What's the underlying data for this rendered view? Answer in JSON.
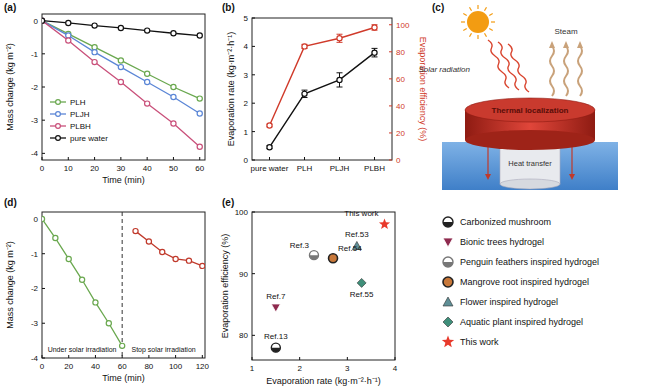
{
  "chart_data": [
    {
      "title": "(a)",
      "type": "line",
      "x_label": "Time (min)",
      "y_label": "Mass change (kg m⁻²)",
      "x": [
        0,
        10,
        20,
        30,
        40,
        50,
        60
      ],
      "xlim": [
        0,
        62
      ],
      "xticks": [
        0,
        10,
        20,
        30,
        40,
        50,
        60
      ],
      "ylim": [
        -4.2,
        0.2
      ],
      "yticks": [
        -4,
        -3,
        -2,
        -1,
        0
      ],
      "legend": "lower left",
      "series": [
        {
          "name": "PLH",
          "color": "#6aa84f",
          "marker": "open-circle",
          "values": [
            0,
            -0.4,
            -0.8,
            -1.2,
            -1.6,
            -2.0,
            -2.35
          ]
        },
        {
          "name": "PLJH",
          "color": "#5b86d6",
          "marker": "open-circle",
          "values": [
            0,
            -0.45,
            -0.95,
            -1.4,
            -1.85,
            -2.3,
            -2.8
          ]
        },
        {
          "name": "PLBH",
          "color": "#c9507a",
          "marker": "open-circle",
          "values": [
            0,
            -0.6,
            -1.25,
            -1.85,
            -2.5,
            -3.1,
            -3.8
          ]
        },
        {
          "name": "pure water",
          "color": "#111111",
          "marker": "open-circle",
          "values": [
            0,
            -0.07,
            -0.15,
            -0.22,
            -0.3,
            -0.38,
            -0.45
          ]
        }
      ]
    },
    {
      "title": "(b)",
      "type": "line",
      "categories": [
        "pure water",
        "PLH",
        "PLJH",
        "PLBH"
      ],
      "y_label": "Evaporation rate (kg·m⁻²·h⁻¹)",
      "y2_label": "Evaporation efficiency (%)",
      "ylim": [
        0,
        5
      ],
      "yticks": [
        0,
        1,
        2,
        3,
        4,
        5
      ],
      "y2lim": [
        0,
        105
      ],
      "y2ticks": [
        0,
        20,
        40,
        60,
        80,
        100
      ],
      "series": [
        {
          "color": "#111111",
          "marker": "circle",
          "values": [
            0.45,
            2.33,
            2.82,
            3.78
          ],
          "errors": [
            0.05,
            0.13,
            0.25,
            0.15
          ]
        },
        {
          "color": "#d03a2a",
          "marker": "circle",
          "axis": "y2",
          "values": [
            25.5,
            84,
            90,
            98
          ],
          "errors": [
            1,
            1.5,
            3,
            2
          ]
        }
      ]
    },
    {
      "title": "(d)",
      "type": "line",
      "x_label": "Time (min)",
      "y_label": "Mass change (kg m⁻²)",
      "xlim": [
        0,
        122
      ],
      "xticks": [
        0,
        20,
        40,
        60,
        80,
        100,
        120
      ],
      "ylim": [
        -4,
        0.2
      ],
      "yticks": [
        -4,
        -3,
        -2,
        -1,
        0
      ],
      "vline": 60,
      "annotations": [
        "Under solar irradiation",
        "Stop solar irradiation"
      ],
      "series": [
        {
          "color": "#6aa84f",
          "marker": "open-circle",
          "x": [
            0,
            10,
            20,
            30,
            40,
            50,
            60
          ],
          "values": [
            0,
            -0.55,
            -1.15,
            -1.75,
            -2.4,
            -3.0,
            -3.65
          ]
        },
        {
          "color": "#c0392b",
          "marker": "open-circle",
          "x": [
            70,
            80,
            90,
            100,
            110,
            120
          ],
          "values": [
            -0.35,
            -0.65,
            -0.95,
            -1.15,
            -1.2,
            -1.35
          ]
        }
      ]
    },
    {
      "title": "(e)",
      "type": "scatter",
      "x_label": "Evaporation rate (kg·m⁻²·h⁻¹)",
      "y_label": "Evaporation efficiency (%)",
      "xlim": [
        1,
        4
      ],
      "xticks": [
        1,
        2,
        3,
        4
      ],
      "ylim": [
        76,
        100
      ],
      "yticks": [
        80,
        90,
        100
      ],
      "legend": "outside right",
      "series": [
        {
          "name": "Carbonized mushroom",
          "color": "#222222",
          "marker": "half-circle",
          "x": [
            1.5
          ],
          "values": [
            78
          ],
          "labels": [
            "Ref.13"
          ]
        },
        {
          "name": "Bionic trees hydrogel",
          "color": "#8e2a4e",
          "marker": "triangle-down",
          "x": [
            1.5
          ],
          "values": [
            84.5
          ],
          "labels": [
            "Ref.7"
          ]
        },
        {
          "name": "Penguin feathers inspired hydrogel",
          "color": "#777777",
          "marker": "half-circle",
          "x": [
            2.3
          ],
          "values": [
            93
          ],
          "labels": [
            "Ref.3"
          ]
        },
        {
          "name": "Mangrove root inspired hydrogel",
          "color": "#c8783a",
          "marker": "circle",
          "x": [
            2.7
          ],
          "values": [
            92.5
          ],
          "labels": [
            "Ref.54"
          ]
        },
        {
          "name": "Flower inspired hydrogel",
          "color": "#5f8f96",
          "marker": "triangle",
          "x": [
            3.2
          ],
          "values": [
            94.5
          ],
          "labels": [
            "Ref.53"
          ]
        },
        {
          "name": "Aquatic plant inspired hydrogel",
          "color": "#3f8f7a",
          "marker": "diamond",
          "x": [
            3.3
          ],
          "values": [
            88.5
          ],
          "labels": [
            "Ref.55"
          ]
        },
        {
          "name": "This work",
          "color": "#e8392b",
          "marker": "star",
          "x": [
            3.78
          ],
          "values": [
            98
          ],
          "labels": [
            "This work"
          ]
        }
      ]
    }
  ],
  "diagram": {
    "title": "(c)",
    "texts": [
      "Solar radiation",
      "Steam",
      "Thermal localization",
      "Heat transfer"
    ]
  }
}
